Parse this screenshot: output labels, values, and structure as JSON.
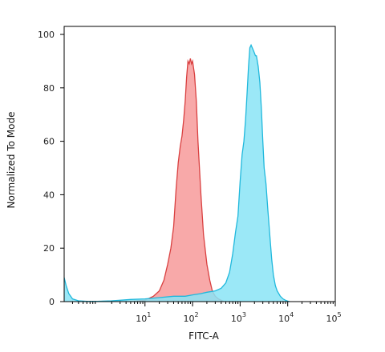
{
  "chart_data": {
    "type": "area",
    "title": "",
    "xlabel": "FITC-A",
    "ylabel": "Normalized To Mode",
    "x_scale": "log",
    "xlim": [
      0.2,
      100000
    ],
    "ylim": [
      0,
      103
    ],
    "x_ticks": [
      {
        "value": 10,
        "base": "10",
        "exp": "1"
      },
      {
        "value": 100,
        "base": "10",
        "exp": "2"
      },
      {
        "value": 1000,
        "base": "10",
        "exp": "3"
      },
      {
        "value": 10000,
        "base": "10",
        "exp": "4"
      },
      {
        "value": 100000,
        "base": "10",
        "exp": "5"
      }
    ],
    "y_ticks": [
      0,
      20,
      40,
      60,
      80,
      100
    ],
    "grid": false,
    "series": [
      {
        "color": "#f08080",
        "stroke": "#d94040",
        "fill": "#f79a9a",
        "x": [
          5,
          10,
          15,
          20,
          25,
          30,
          35,
          40,
          45,
          50,
          55,
          60,
          65,
          70,
          75,
          80,
          85,
          90,
          95,
          100,
          110,
          120,
          130,
          150,
          170,
          200,
          230,
          260,
          300,
          350,
          400,
          450
        ],
        "y": [
          0,
          0.5,
          2,
          4,
          8,
          14,
          20,
          28,
          42,
          52,
          58,
          62,
          68,
          75,
          84,
          90,
          89,
          91,
          89,
          90,
          85,
          75,
          60,
          40,
          25,
          14,
          8,
          4,
          2,
          1,
          0.5,
          0
        ]
      },
      {
        "color": "#40c8e8",
        "stroke": "#20b8dc",
        "fill": "#8ae4f6",
        "x": [
          0.2,
          0.22,
          0.25,
          0.3,
          0.4,
          0.6,
          1,
          2,
          3,
          5,
          10,
          20,
          40,
          70,
          100,
          150,
          200,
          300,
          400,
          500,
          600,
          700,
          800,
          900,
          1000,
          1100,
          1200,
          1300,
          1400,
          1500,
          1600,
          1700,
          1800,
          1900,
          2000,
          2100,
          2200,
          2400,
          2600,
          2800,
          3000,
          3200,
          3500,
          3800,
          4200,
          4600,
          5000,
          5500,
          6000,
          7000,
          8000,
          9000,
          10000,
          11000
        ],
        "y": [
          9,
          6,
          3,
          1,
          0.3,
          0.1,
          0.1,
          0.3,
          0.5,
          0.8,
          1,
          1.5,
          2,
          2,
          2.5,
          3,
          3.5,
          4,
          5,
          7,
          11,
          18,
          26,
          32,
          45,
          55,
          60,
          68,
          78,
          88,
          95,
          96,
          95,
          94,
          93,
          92,
          92,
          88,
          82,
          72,
          60,
          50,
          44,
          35,
          25,
          16,
          10,
          6,
          4,
          2,
          1,
          0.5,
          0.2,
          0
        ]
      }
    ]
  }
}
